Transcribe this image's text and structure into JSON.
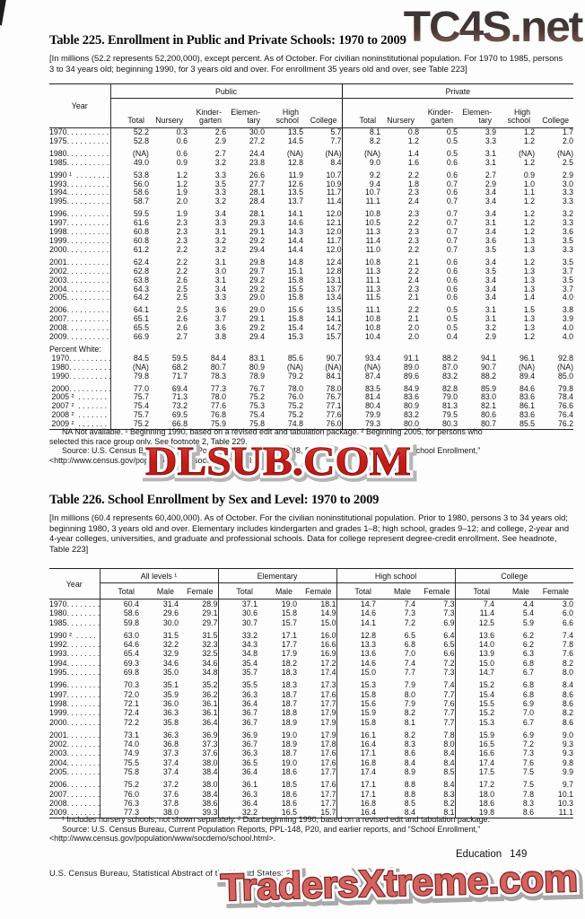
{
  "page": {
    "watermark_top": "TC4S.net",
    "watermark_mid": "DLSUB.COM",
    "watermark_bottom": "TradersXtreme.com",
    "section_label": "Education",
    "page_number": "149",
    "footer": "U.S. Census Bureau, Statistical Abstract of the United States: 2012"
  },
  "t225": {
    "title": "Table 225. Enrollment in Public and Private Schools: 1970 to 2009",
    "headnote": "[In millions (52.2 represents 52,200,000), except percent. As of October. For civilian noninstitutional population. For 1970 to 1985, persons 3 to 34 years old; beginning 1990, for 3 years old and over. For enrollment 35 years old and over, see Table 223]",
    "col_year": "Year",
    "spanners": [
      "Public",
      "Private"
    ],
    "columns": [
      "Total",
      "Nursery",
      "Kinder-\ngarten",
      "Elemen-\ntary",
      "High\nschool",
      "College"
    ],
    "footnote1": "NA Not available. ¹ Beginning 1990, based on a revised edit and tabulation package. ² Beginning 2005, for persons who",
    "footnote2": "selected this race group only. See footnote 2, Table 229.",
    "source1": "Source: U.S. Census Bureau, Current Population Reports, PPL-148, P20, and earlier reports, and “School Enrollment,”",
    "source2": "<http://www.census.gov/population/www/socdemo/school.html>.",
    "rows": [
      {
        "y": "1970. . . . . . . . . . .",
        "c": [
          "52.2",
          "0.3",
          "2.6",
          "30.0",
          "13.5",
          "5.7",
          "8.1",
          "0.8",
          "0.5",
          "3.9",
          "1.2",
          "1.7"
        ]
      },
      {
        "y": "1975. . . . . . . . . . .",
        "c": [
          "52.8",
          "0.6",
          "2.9",
          "27.2",
          "14.5",
          "7.7",
          "8.2",
          "1.2",
          "0.5",
          "3.3",
          "1.2",
          "2.0"
        ]
      },
      {
        "y": "1980. . . . . . . . . . .",
        "g": 1,
        "c": [
          "(NA)",
          "0.6",
          "2.7",
          "24.4",
          "(NA)",
          "(NA)",
          "(NA)",
          "1.4",
          "0.5",
          "3.1",
          "(NA)",
          "(NA)"
        ]
      },
      {
        "y": "1985. . . . . . . . . . .",
        "c": [
          "49.0",
          "0.9",
          "3.2",
          "23.8",
          "12.8",
          "8.4",
          "9.0",
          "1.6",
          "0.6",
          "3.1",
          "1.2",
          "2.5"
        ]
      },
      {
        "y": "1990 ¹  . . . . . . . .",
        "g": 1,
        "c": [
          "53.8",
          "1.2",
          "3.3",
          "26.6",
          "11.9",
          "10.7",
          "9.2",
          "2.2",
          "0.6",
          "2.7",
          "0.9",
          "2.9"
        ]
      },
      {
        "y": "1993. . . . . . . . . . .",
        "c": [
          "56.0",
          "1.2",
          "3.5",
          "27.7",
          "12.6",
          "10.9",
          "9.4",
          "1.8",
          "0.7",
          "2.9",
          "1.0",
          "3.0"
        ]
      },
      {
        "y": "1994. . . . . . . . . . .",
        "c": [
          "58.6",
          "1.9",
          "3.3",
          "28.1",
          "13.5",
          "11.7",
          "10.7",
          "2.3",
          "0.6",
          "3.4",
          "1.1",
          "3.3"
        ]
      },
      {
        "y": "1995. . . . . . . . . . .",
        "c": [
          "58.7",
          "2.0",
          "3.2",
          "28.4",
          "13.7",
          "11.4",
          "11.1",
          "2.4",
          "0.7",
          "3.4",
          "1.2",
          "3.3"
        ]
      },
      {
        "y": "1996. . . . . . . . . . .",
        "g": 1,
        "c": [
          "59.5",
          "1.9",
          "3.4",
          "28.1",
          "14.1",
          "12.0",
          "10.8",
          "2.3",
          "0.7",
          "3.4",
          "1.2",
          "3.2"
        ]
      },
      {
        "y": "1997. . . . . . . . . . .",
        "c": [
          "61.6",
          "2.3",
          "3.3",
          "29.3",
          "14.6",
          "12.1",
          "10.5",
          "2.2",
          "0.7",
          "3.1",
          "1.2",
          "3.3"
        ]
      },
      {
        "y": "1998. . . . . . . . . . .",
        "c": [
          "60.8",
          "2.3",
          "3.1",
          "29.1",
          "14.3",
          "12.0",
          "11.3",
          "2.3",
          "0.7",
          "3.4",
          "1.2",
          "3.6"
        ]
      },
      {
        "y": "1999. . . . . . . . . . .",
        "c": [
          "60.8",
          "2.3",
          "3.2",
          "29.2",
          "14.4",
          "11.7",
          "11.4",
          "2.3",
          "0.7",
          "3.6",
          "1.3",
          "3.5"
        ]
      },
      {
        "y": "2000. . . . . . . . . . .",
        "c": [
          "61.2",
          "2.2",
          "3.2",
          "29.4",
          "14.4",
          "12.0",
          "11.0",
          "2.2",
          "0.7",
          "3.5",
          "1.3",
          "3.3"
        ]
      },
      {
        "y": "2001. . . . . . . . . . .",
        "g": 1,
        "c": [
          "62.4",
          "2.2",
          "3.1",
          "29.8",
          "14.8",
          "12.4",
          "10.8",
          "2.1",
          "0.6",
          "3.4",
          "1.2",
          "3.5"
        ]
      },
      {
        "y": "2002. . . . . . . . . . .",
        "c": [
          "62.8",
          "2.2",
          "3.0",
          "29.7",
          "15.1",
          "12.8",
          "11.3",
          "2.2",
          "0.6",
          "3.5",
          "1.3",
          "3.7"
        ]
      },
      {
        "y": "2003. . . . . . . . . . .",
        "c": [
          "63.8",
          "2.6",
          "3.1",
          "29.2",
          "15.8",
          "13.1",
          "11.1",
          "2.4",
          "0.6",
          "3.4",
          "1.3",
          "3.5"
        ]
      },
      {
        "y": "2004. . . . . . . . . . .",
        "c": [
          "64.3",
          "2.5",
          "3.4",
          "29.2",
          "15.5",
          "13.7",
          "11.3",
          "2.3",
          "0.6",
          "3.4",
          "1.3",
          "3.7"
        ]
      },
      {
        "y": "2005. . . . . . . . . . .",
        "c": [
          "64.2",
          "2.5",
          "3.3",
          "29.0",
          "15.8",
          "13.4",
          "11.5",
          "2.1",
          "0.6",
          "3.4",
          "1.4",
          "4.0"
        ]
      },
      {
        "y": "2006. . . . . . . . . . .",
        "g": 1,
        "c": [
          "64.1",
          "2.5",
          "3.6",
          "29.0",
          "15.6",
          "13.5",
          "11.1",
          "2.2",
          "0.5",
          "3.1",
          "1.5",
          "3.8"
        ]
      },
      {
        "y": "2007. . . . . . . . . . .",
        "c": [
          "65.1",
          "2.6",
          "3.7",
          "29.1",
          "15.8",
          "14.1",
          "10.8",
          "2.1",
          "0.5",
          "3.1",
          "1.3",
          "3.9"
        ]
      },
      {
        "y": "2008. . . . . . . . . . .",
        "c": [
          "65.5",
          "2.6",
          "3.6",
          "29.2",
          "15.4",
          "14.7",
          "10.8",
          "2.0",
          "0.5",
          "3.2",
          "1.3",
          "4.0"
        ]
      },
      {
        "y": "2009. . . . . . . . . . .",
        "c": [
          "66.9",
          "2.7",
          "3.8",
          "29.4",
          "15.3",
          "15.7",
          "10.4",
          "2.0",
          "0.4",
          "2.9",
          "1.2",
          "4.0"
        ]
      },
      {
        "y": "Percent White:",
        "g": 1,
        "c": [
          "",
          "",
          "",
          "",
          "",
          "",
          "",
          "",
          "",
          "",
          "",
          ""
        ]
      },
      {
        "y": " 1970. . . . . . . . . .",
        "c": [
          "84.5",
          "59.5",
          "84.4",
          "83.1",
          "85.6",
          "90.7",
          "93.4",
          "91.1",
          "88.2",
          "94.1",
          "96.1",
          "92.8"
        ]
      },
      {
        "y": " 1980. . . . . . . . . .",
        "c": [
          "(NA)",
          "68.2",
          "80.7",
          "80.9",
          "(NA)",
          "(NA)",
          "(NA)",
          "89.0",
          "87.0",
          "90.7",
          "(NA)",
          "(NA)"
        ]
      },
      {
        "y": " 1990. . . . . . . . . .",
        "c": [
          "79.8",
          "71.7",
          "78.3",
          "78.9",
          "79.2",
          "84.1",
          "87.4",
          "89.6",
          "83.2",
          "88.2",
          "89.4",
          "85.0"
        ]
      },
      {
        "y": " 2000. . . . . . . . . .",
        "g": 1,
        "c": [
          "77.0",
          "69.4",
          "77.3",
          "76.7",
          "78.0",
          "78.0",
          "83.5",
          "84.9",
          "82.8",
          "85.9",
          "84.6",
          "79.8"
        ]
      },
      {
        "y": " 2005 ²  . . . . . . .",
        "c": [
          "75.7",
          "71.3",
          "78.0",
          "75.2",
          "76.0",
          "76.7",
          "81.4",
          "83.6",
          "79.0",
          "83.0",
          "83.6",
          "78.4"
        ]
      },
      {
        "y": " 2007 ²  . . . . . . .",
        "c": [
          "75.4",
          "73.2",
          "77.6",
          "75.3",
          "75.2",
          "77.1",
          "80.4",
          "80.9",
          "81.3",
          "82.1",
          "86.1",
          "76.6"
        ]
      },
      {
        "y": " 2008 ²  . . . . . . .",
        "c": [
          "75.7",
          "69.5",
          "76.8",
          "75.4",
          "75.2",
          "77.6",
          "79.9",
          "83.2",
          "79.5",
          "80.6",
          "83.6",
          "76.4"
        ]
      },
      {
        "y": " 2009 ²  . . . . . . .",
        "c": [
          "75.2",
          "66.8",
          "75.9",
          "75.8",
          "74.8",
          "76.0",
          "79.3",
          "80.0",
          "80.3",
          "80.7",
          "85.5",
          "76.2"
        ]
      }
    ]
  },
  "t226": {
    "title": "Table 226. School Enrollment by Sex and Level: 1970 to 2009",
    "headnote": "[In millions (60.4 represents 60,400,000). As of October. For the civilian noninstitutional population. Prior to 1980, persons 3 to 34 years old; beginning 1980, 3 years old and over. Elementary includes kindergarten and grades 1–8; high school, grades 9–12; and college, 2-year and 4-year colleges, universities, and graduate and professional schools. Data for college represent degree-credit enrollment. See headnote, Table 223]",
    "col_year": "Year",
    "spanners": [
      "All levels ¹",
      "Elementary",
      "High school",
      "College"
    ],
    "columns": [
      "Total",
      "Male",
      "Female"
    ],
    "footnote1": "¹ Includes nursery schools, not shown separately. ² Data beginning 1990, based on a revised edit and tabulation package.",
    "source1": "Source: U.S. Census Bureau, Current Population Reports, PPL-148, P20, and earlier reports, and “School Enrollment,”",
    "source2": "<http://www.census.gov/population/www/socdemo/school.html>.",
    "rows": [
      {
        "y": "1970. . . . . . . .",
        "c": [
          "60.4",
          "31.4",
          "28.9",
          "37.1",
          "19.0",
          "18.1",
          "14.7",
          "7.4",
          "7.3",
          "7.4",
          "4.4",
          "3.0"
        ]
      },
      {
        "y": "1980. . . . . . . .",
        "c": [
          "58.6",
          "29.6",
          "29.1",
          "30.6",
          "15.8",
          "14.9",
          "14.6",
          "7.3",
          "7.3",
          "11.4",
          "5.4",
          "6.0"
        ]
      },
      {
        "y": "1985. . . . . . . .",
        "c": [
          "59.8",
          "30.0",
          "29.7",
          "30.7",
          "15.7",
          "15.0",
          "14.1",
          "7.2",
          "6.9",
          "12.5",
          "5.9",
          "6.6"
        ]
      },
      {
        "y": "1990 ²  . . . . .",
        "g": 1,
        "c": [
          "63.0",
          "31.5",
          "31.5",
          "33.2",
          "17.1",
          "16.0",
          "12.8",
          "6.5",
          "6.4",
          "13.6",
          "6.2",
          "7.4"
        ]
      },
      {
        "y": "1992. . . . . . . .",
        "c": [
          "64.6",
          "32.2",
          "32.3",
          "34.3",
          "17.7",
          "16.6",
          "13.3",
          "6.8",
          "6.5",
          "14.0",
          "6.2",
          "7.8"
        ]
      },
      {
        "y": "1993. . . . . . . .",
        "c": [
          "65.4",
          "32.9",
          "32.5",
          "34.8",
          "17.9",
          "16.9",
          "13.6",
          "7.0",
          "6.6",
          "13.9",
          "6.3",
          "7.6"
        ]
      },
      {
        "y": "1994. . . . . . . .",
        "c": [
          "69.3",
          "34.6",
          "34.6",
          "35.4",
          "18.2",
          "17.2",
          "14.6",
          "7.4",
          "7.2",
          "15.0",
          "6.8",
          "8.2"
        ]
      },
      {
        "y": "1995. . . . . . . .",
        "c": [
          "69.8",
          "35.0",
          "34.8",
          "35.7",
          "18.3",
          "17.4",
          "15.0",
          "7.7",
          "7.3",
          "14.7",
          "6.7",
          "8.0"
        ]
      },
      {
        "y": "1996. . . . . . . .",
        "g": 1,
        "c": [
          "70.3",
          "35.1",
          "35.2",
          "35.5",
          "18.3",
          "17.3",
          "15.3",
          "7.9",
          "7.4",
          "15.2",
          "6.8",
          "8.4"
        ]
      },
      {
        "y": "1997. . . . . . . .",
        "c": [
          "72.0",
          "35.9",
          "36.2",
          "36.3",
          "18.7",
          "17.6",
          "15.8",
          "8.0",
          "7.7",
          "15.4",
          "6.8",
          "8.6"
        ]
      },
      {
        "y": "1998. . . . . . . .",
        "c": [
          "72.1",
          "36.0",
          "36.1",
          "36.4",
          "18.7",
          "17.7",
          "15.6",
          "7.9",
          "7.6",
          "15.5",
          "6.9",
          "8.6"
        ]
      },
      {
        "y": "1999. . . . . . . .",
        "c": [
          "72.4",
          "36.3",
          "36.1",
          "36.7",
          "18.8",
          "17.9",
          "15.9",
          "8.2",
          "7.7",
          "15.2",
          "7.0",
          "8.2"
        ]
      },
      {
        "y": "2000. . . . . . . .",
        "c": [
          "72.2",
          "35.8",
          "36.4",
          "36.7",
          "18.9",
          "17.9",
          "15.8",
          "8.1",
          "7.7",
          "15.3",
          "6.7",
          "8.6"
        ]
      },
      {
        "y": "2001. . . . . . . .",
        "g": 1,
        "c": [
          "73.1",
          "36.3",
          "36.9",
          "36.9",
          "19.0",
          "17.9",
          "16.1",
          "8.2",
          "7.8",
          "15.9",
          "6.9",
          "9.0"
        ]
      },
      {
        "y": "2002. . . . . . . .",
        "c": [
          "74.0",
          "36.8",
          "37.3",
          "36.7",
          "18.9",
          "17.8",
          "16.4",
          "8.3",
          "8.0",
          "16.5",
          "7.2",
          "9.3"
        ]
      },
      {
        "y": "2003. . . . . . . .",
        "c": [
          "74.9",
          "37.3",
          "37.6",
          "36.3",
          "18.7",
          "17.6",
          "17.1",
          "8.6",
          "8.4",
          "16.6",
          "7.3",
          "9.3"
        ]
      },
      {
        "y": "2004. . . . . . . .",
        "c": [
          "75.5",
          "37.4",
          "38.0",
          "36.5",
          "19.0",
          "17.6",
          "16.8",
          "8.4",
          "8.4",
          "17.4",
          "7.6",
          "9.8"
        ]
      },
      {
        "y": "2005. . . . . . . .",
        "c": [
          "75.8",
          "37.4",
          "38.4",
          "36.4",
          "18.6",
          "17.7",
          "17.4",
          "8.9",
          "8.5",
          "17.5",
          "7.5",
          "9.9"
        ]
      },
      {
        "y": "2006. . . . . . . .",
        "g": 1,
        "c": [
          "75.2",
          "37.2",
          "38.0",
          "36.1",
          "18.5",
          "17.6",
          "17.1",
          "8.8",
          "8.4",
          "17.2",
          "7.5",
          "9.7"
        ]
      },
      {
        "y": "2007. . . . . . . .",
        "c": [
          "76.0",
          "37.6",
          "38.4",
          "36.3",
          "18.6",
          "17.7",
          "17.1",
          "8.8",
          "8.3",
          "18.0",
          "7.8",
          "10.1"
        ]
      },
      {
        "y": "2008. . . . . . . .",
        "c": [
          "76.3",
          "37.8",
          "38.6",
          "36.4",
          "18.6",
          "17.7",
          "16.8",
          "8.5",
          "8.2",
          "18.6",
          "8.3",
          "10.3"
        ]
      },
      {
        "y": "2009. . . . . . . .",
        "c": [
          "77.3",
          "38.0",
          "39.3",
          "32.2",
          "16.5",
          "15.7",
          "16.4",
          "8.4",
          "8.1",
          "19.8",
          "8.6",
          "11.1"
        ]
      }
    ]
  }
}
